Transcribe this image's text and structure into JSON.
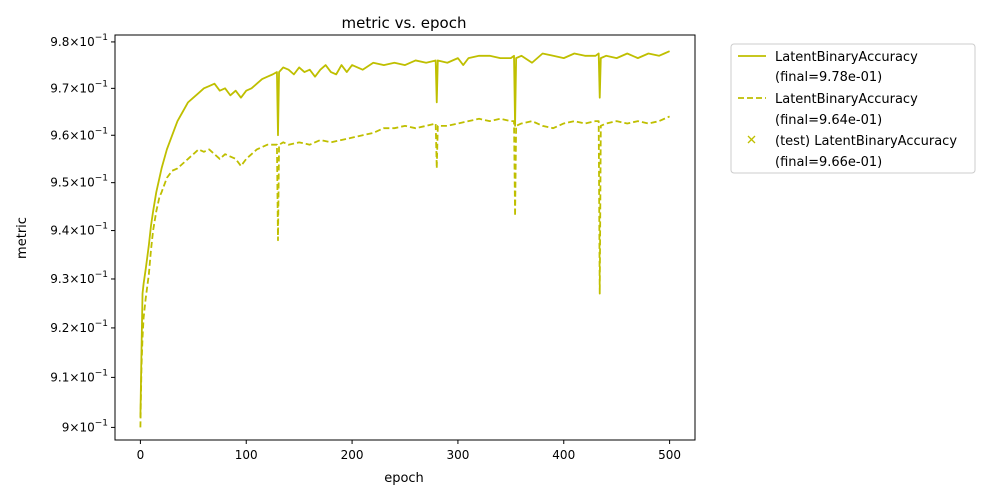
{
  "chart_data": {
    "type": "line",
    "title": "metric vs. epoch",
    "xlabel": "epoch",
    "ylabel": "metric",
    "xlim": [
      -24,
      524
    ],
    "ylim": [
      0.8975,
      0.9815
    ],
    "y_scale": "log",
    "grid": false,
    "legend_position": "outside-right",
    "x_ticks": [
      0,
      100,
      200,
      300,
      400,
      500
    ],
    "x_tick_labels": [
      "0",
      "100",
      "200",
      "300",
      "400",
      "500"
    ],
    "y_ticks": [
      0.9,
      0.91,
      0.92,
      0.93,
      0.94,
      0.95,
      0.96,
      0.97,
      0.98
    ],
    "y_tick_mantissas": [
      "9",
      "9.1",
      "9.2",
      "9.3",
      "9.4",
      "9.5",
      "9.6",
      "9.7",
      "9.8"
    ],
    "y_tick_base": "10",
    "y_tick_exponent": "−1",
    "color": "#bfbf00",
    "series": [
      {
        "legend_name": "LatentBinaryAccuracy",
        "legend_final": "(final=9.78e-01)",
        "style": "solid",
        "points": [
          [
            0,
            0.902
          ],
          [
            1,
            0.915
          ],
          [
            2,
            0.927
          ],
          [
            3,
            0.929
          ],
          [
            5,
            0.932
          ],
          [
            8,
            0.937
          ],
          [
            10,
            0.941
          ],
          [
            12,
            0.944
          ],
          [
            15,
            0.948
          ],
          [
            18,
            0.951
          ],
          [
            20,
            0.953
          ],
          [
            25,
            0.957
          ],
          [
            30,
            0.96
          ],
          [
            35,
            0.963
          ],
          [
            40,
            0.965
          ],
          [
            45,
            0.967
          ],
          [
            50,
            0.968
          ],
          [
            55,
            0.969
          ],
          [
            60,
            0.97
          ],
          [
            65,
            0.9705
          ],
          [
            70,
            0.971
          ],
          [
            75,
            0.9695
          ],
          [
            80,
            0.97
          ],
          [
            85,
            0.9685
          ],
          [
            90,
            0.9695
          ],
          [
            95,
            0.968
          ],
          [
            100,
            0.9695
          ],
          [
            105,
            0.97
          ],
          [
            110,
            0.971
          ],
          [
            115,
            0.972
          ],
          [
            120,
            0.9725
          ],
          [
            125,
            0.973
          ],
          [
            129,
            0.9735
          ],
          [
            130,
            0.96
          ],
          [
            131,
            0.9735
          ],
          [
            135,
            0.9745
          ],
          [
            140,
            0.974
          ],
          [
            145,
            0.973
          ],
          [
            150,
            0.9745
          ],
          [
            155,
            0.9735
          ],
          [
            160,
            0.974
          ],
          [
            165,
            0.9725
          ],
          [
            170,
            0.974
          ],
          [
            175,
            0.975
          ],
          [
            180,
            0.9735
          ],
          [
            185,
            0.973
          ],
          [
            190,
            0.975
          ],
          [
            195,
            0.9735
          ],
          [
            200,
            0.975
          ],
          [
            210,
            0.974
          ],
          [
            220,
            0.9755
          ],
          [
            230,
            0.975
          ],
          [
            240,
            0.9755
          ],
          [
            250,
            0.975
          ],
          [
            260,
            0.976
          ],
          [
            270,
            0.9755
          ],
          [
            279,
            0.976
          ],
          [
            280,
            0.967
          ],
          [
            281,
            0.976
          ],
          [
            290,
            0.9755
          ],
          [
            300,
            0.9765
          ],
          [
            305,
            0.975
          ],
          [
            310,
            0.9765
          ],
          [
            320,
            0.977
          ],
          [
            330,
            0.977
          ],
          [
            340,
            0.9765
          ],
          [
            350,
            0.9765
          ],
          [
            353,
            0.977
          ],
          [
            354,
            0.962
          ],
          [
            355,
            0.9765
          ],
          [
            360,
            0.977
          ],
          [
            370,
            0.9755
          ],
          [
            380,
            0.9775
          ],
          [
            390,
            0.977
          ],
          [
            400,
            0.9765
          ],
          [
            410,
            0.9775
          ],
          [
            420,
            0.977
          ],
          [
            430,
            0.977
          ],
          [
            433,
            0.9775
          ],
          [
            434,
            0.968
          ],
          [
            435,
            0.9765
          ],
          [
            440,
            0.977
          ],
          [
            450,
            0.9765
          ],
          [
            460,
            0.9775
          ],
          [
            470,
            0.9765
          ],
          [
            480,
            0.9775
          ],
          [
            490,
            0.977
          ],
          [
            495,
            0.9775
          ],
          [
            500,
            0.978
          ]
        ]
      },
      {
        "legend_name": "LatentBinaryAccuracy",
        "legend_final": "(final=9.64e-01)",
        "style": "dashed",
        "points": [
          [
            0,
            0.9
          ],
          [
            1,
            0.912
          ],
          [
            2,
            0.918
          ],
          [
            3,
            0.922
          ],
          [
            5,
            0.926
          ],
          [
            8,
            0.931
          ],
          [
            10,
            0.936
          ],
          [
            12,
            0.94
          ],
          [
            15,
            0.944
          ],
          [
            18,
            0.947
          ],
          [
            20,
            0.948
          ],
          [
            25,
            0.951
          ],
          [
            30,
            0.9525
          ],
          [
            35,
            0.953
          ],
          [
            40,
            0.954
          ],
          [
            45,
            0.955
          ],
          [
            50,
            0.956
          ],
          [
            55,
            0.957
          ],
          [
            60,
            0.9565
          ],
          [
            65,
            0.957
          ],
          [
            70,
            0.956
          ],
          [
            75,
            0.955
          ],
          [
            80,
            0.956
          ],
          [
            85,
            0.9555
          ],
          [
            90,
            0.955
          ],
          [
            95,
            0.9535
          ],
          [
            100,
            0.955
          ],
          [
            105,
            0.956
          ],
          [
            110,
            0.957
          ],
          [
            115,
            0.9575
          ],
          [
            120,
            0.958
          ],
          [
            125,
            0.958
          ],
          [
            129,
            0.958
          ],
          [
            130,
            0.938
          ],
          [
            131,
            0.958
          ],
          [
            135,
            0.9585
          ],
          [
            140,
            0.958
          ],
          [
            150,
            0.9585
          ],
          [
            160,
            0.958
          ],
          [
            170,
            0.959
          ],
          [
            180,
            0.9585
          ],
          [
            190,
            0.959
          ],
          [
            200,
            0.9595
          ],
          [
            210,
            0.96
          ],
          [
            220,
            0.9605
          ],
          [
            230,
            0.9615
          ],
          [
            240,
            0.9615
          ],
          [
            250,
            0.962
          ],
          [
            260,
            0.9615
          ],
          [
            270,
            0.962
          ],
          [
            279,
            0.9625
          ],
          [
            280,
            0.953
          ],
          [
            281,
            0.962
          ],
          [
            290,
            0.962
          ],
          [
            300,
            0.9625
          ],
          [
            310,
            0.963
          ],
          [
            320,
            0.9635
          ],
          [
            330,
            0.963
          ],
          [
            340,
            0.9635
          ],
          [
            350,
            0.963
          ],
          [
            353,
            0.963
          ],
          [
            354,
            0.943
          ],
          [
            355,
            0.962
          ],
          [
            360,
            0.9625
          ],
          [
            370,
            0.963
          ],
          [
            380,
            0.962
          ],
          [
            390,
            0.9615
          ],
          [
            400,
            0.9625
          ],
          [
            410,
            0.963
          ],
          [
            420,
            0.9625
          ],
          [
            430,
            0.963
          ],
          [
            433,
            0.963
          ],
          [
            434,
            0.927
          ],
          [
            435,
            0.962
          ],
          [
            440,
            0.9625
          ],
          [
            450,
            0.963
          ],
          [
            460,
            0.9625
          ],
          [
            470,
            0.963
          ],
          [
            480,
            0.9625
          ],
          [
            490,
            0.963
          ],
          [
            500,
            0.964
          ]
        ]
      }
    ],
    "legend_test": {
      "name": "(test) LatentBinaryAccuracy",
      "final": "(final=9.66e-01)",
      "marker": "x"
    }
  }
}
